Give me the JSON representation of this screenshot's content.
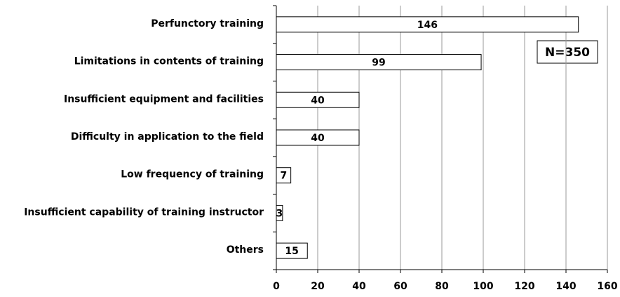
{
  "chart_data": {
    "type": "barh",
    "categories": [
      "Perfunctory training",
      "Limitations in contents of training",
      "Insufficient equipment and facilities",
      "Difficulty in application to the field",
      "Low frequency of training",
      "Insufficient capability of training instructor",
      "Others"
    ],
    "values": [
      146,
      99,
      40,
      40,
      7,
      3,
      15
    ],
    "color": "#ffffff",
    "xlim": [
      0,
      160
    ],
    "xticks": [
      0,
      20,
      40,
      60,
      80,
      100,
      120,
      140,
      160
    ],
    "grid": true,
    "annotation": "N=350"
  }
}
